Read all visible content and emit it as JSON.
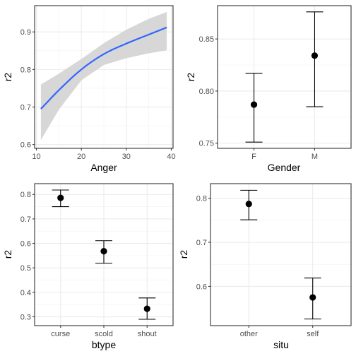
{
  "chart_data": [
    {
      "type": "line",
      "xlabel": "Anger",
      "ylabel": "r2",
      "xlim": [
        9.6,
        40.4
      ],
      "ylim": [
        0.59,
        0.97
      ],
      "x_ticks": [
        10,
        20,
        30,
        40
      ],
      "y_ticks": [
        0.6,
        0.7,
        0.8,
        0.9
      ],
      "x_tick_labels": [
        "10",
        "20",
        "30",
        "40"
      ],
      "y_tick_labels": [
        "0.6",
        "0.7",
        "0.8",
        "0.9"
      ],
      "grid": true,
      "line_color": "#3366ff",
      "band_color": "#d3d3d3",
      "x": [
        11,
        15,
        20,
        25,
        30,
        35,
        39
      ],
      "y": [
        0.695,
        0.745,
        0.8,
        0.841,
        0.869,
        0.893,
        0.912
      ],
      "lower": [
        0.612,
        0.693,
        0.771,
        0.812,
        0.83,
        0.843,
        0.851
      ],
      "upper": [
        0.76,
        0.789,
        0.828,
        0.87,
        0.906,
        0.935,
        0.953
      ]
    },
    {
      "type": "scatter",
      "xlabel": "Gender",
      "ylabel": "r2",
      "categories": [
        "F",
        "M"
      ],
      "values": [
        0.787,
        0.834
      ],
      "lower": [
        0.751,
        0.785
      ],
      "upper": [
        0.817,
        0.876
      ],
      "ylim": [
        0.745,
        0.882
      ],
      "y_ticks": [
        0.75,
        0.8,
        0.85
      ],
      "y_tick_labels": [
        "0.75",
        "0.80",
        "0.85"
      ],
      "grid": true
    },
    {
      "type": "scatter",
      "xlabel": "btype",
      "ylabel": "r2",
      "categories": [
        "curse",
        "scold",
        "shout"
      ],
      "values": [
        0.786,
        0.568,
        0.333
      ],
      "lower": [
        0.75,
        0.519,
        0.29
      ],
      "upper": [
        0.818,
        0.611,
        0.377
      ],
      "ylim": [
        0.264,
        0.844
      ],
      "y_ticks": [
        0.3,
        0.4,
        0.5,
        0.6,
        0.7,
        0.8
      ],
      "y_tick_labels": [
        "0.3",
        "0.4",
        "0.5",
        "0.6",
        "0.7",
        "0.8"
      ],
      "grid": true
    },
    {
      "type": "scatter",
      "xlabel": "situ",
      "ylabel": "r2",
      "categories": [
        "other",
        "self"
      ],
      "values": [
        0.787,
        0.575
      ],
      "lower": [
        0.751,
        0.526
      ],
      "upper": [
        0.818,
        0.619
      ],
      "ylim": [
        0.511,
        0.833
      ],
      "y_ticks": [
        0.6,
        0.7,
        0.8
      ],
      "y_tick_labels": [
        "0.6",
        "0.7",
        "0.8"
      ],
      "grid": true
    }
  ]
}
